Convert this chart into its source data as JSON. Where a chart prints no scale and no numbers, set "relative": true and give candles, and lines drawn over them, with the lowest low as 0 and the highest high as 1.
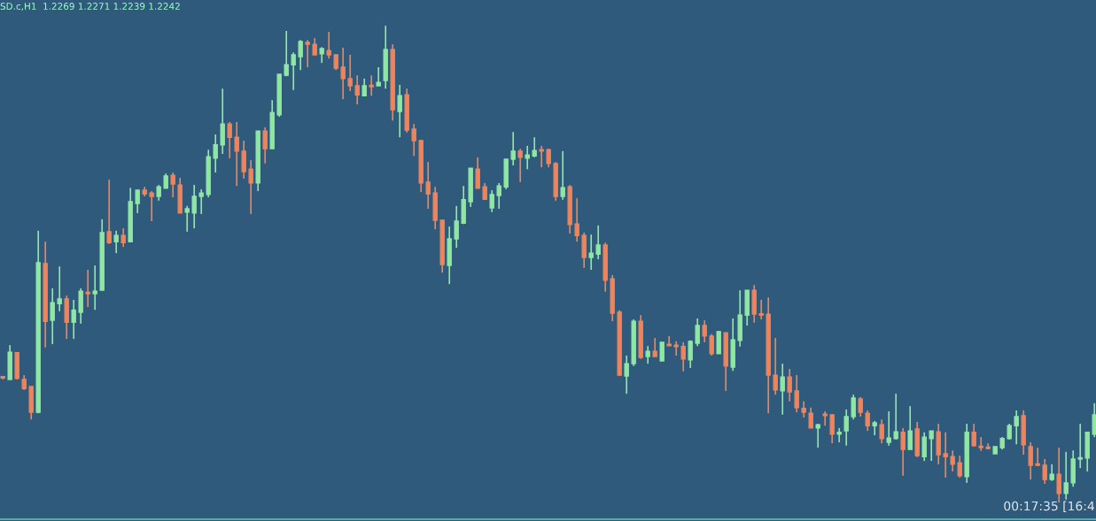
{
  "chart_data": {
    "type": "candlestick",
    "relative": true,
    "title": "SD.c,H1  1.2269 1.2271 1.2239 1.2242",
    "annotations": [
      "00:17:35 [16:4"
    ],
    "categories": [
      null,
      null,
      null,
      null,
      null,
      null,
      null,
      null,
      null,
      null,
      null,
      null,
      null,
      null,
      null,
      null,
      null,
      null,
      null,
      null,
      null,
      null,
      null,
      null,
      null,
      null,
      null,
      null,
      null,
      null,
      null,
      null,
      null,
      null,
      null,
      null,
      null,
      null,
      null,
      null,
      null,
      null,
      null,
      null,
      null,
      null,
      null,
      null,
      null,
      null,
      null,
      null,
      null,
      null,
      null,
      null,
      null,
      null,
      null,
      null,
      null,
      null,
      null,
      null,
      null,
      null,
      null,
      null,
      null,
      null,
      null,
      null,
      null,
      null,
      null,
      null,
      null,
      null,
      null,
      null,
      null,
      null,
      null,
      null,
      null,
      null,
      null,
      null,
      null,
      null,
      null,
      null,
      null,
      null,
      null,
      null,
      null,
      null,
      null,
      null,
      null,
      null,
      null,
      null,
      null,
      null,
      null,
      null,
      null,
      null,
      null,
      null,
      null,
      null,
      null,
      null,
      null,
      null,
      null,
      null,
      null,
      null,
      null,
      null,
      null,
      null,
      null,
      null,
      null,
      null,
      null,
      null,
      null,
      null,
      null,
      null,
      null,
      null,
      null,
      null,
      null,
      null,
      null,
      null,
      null,
      null,
      null,
      null,
      null,
      null,
      null,
      null,
      null,
      null,
      null
    ],
    "ohlc": [
      [
        0.262,
        0.265,
        0.258,
        0.261
      ],
      [
        0.258,
        0.33,
        0.258,
        0.315
      ],
      [
        0.314,
        0.314,
        0.258,
        0.26
      ],
      [
        0.258,
        0.267,
        0.236,
        0.239
      ],
      [
        0.243,
        0.243,
        0.174,
        0.189
      ],
      [
        0.189,
        0.57,
        0.187,
        0.503
      ],
      [
        0.501,
        0.547,
        0.325,
        0.38
      ],
      [
        0.382,
        0.449,
        0.332,
        0.419
      ],
      [
        0.417,
        0.495,
        0.401,
        0.427
      ],
      [
        0.427,
        0.434,
        0.343,
        0.378
      ],
      [
        0.378,
        0.425,
        0.343,
        0.403
      ],
      [
        0.399,
        0.449,
        0.375,
        0.443
      ],
      [
        0.44,
        0.488,
        0.41,
        0.438
      ],
      [
        0.438,
        0.497,
        0.404,
        0.443
      ],
      [
        0.445,
        0.594,
        0.445,
        0.566
      ],
      [
        0.568,
        0.677,
        0.542,
        0.545
      ],
      [
        0.547,
        0.57,
        0.523,
        0.56
      ],
      [
        0.56,
        0.575,
        0.536,
        0.545
      ],
      [
        0.547,
        0.66,
        0.547,
        0.631
      ],
      [
        0.627,
        0.655,
        0.607,
        0.655
      ],
      [
        0.655,
        0.662,
        0.642,
        0.647
      ],
      [
        0.649,
        0.653,
        0.59,
        0.642
      ],
      [
        0.642,
        0.666,
        0.633,
        0.662
      ],
      [
        0.659,
        0.69,
        0.659,
        0.685
      ],
      [
        0.686,
        0.692,
        0.64,
        0.668
      ],
      [
        0.666,
        0.681,
        0.607,
        0.607
      ],
      [
        0.609,
        0.622,
        0.568,
        0.616
      ],
      [
        0.607,
        0.666,
        0.575,
        0.642
      ],
      [
        0.642,
        0.657,
        0.605,
        0.649
      ],
      [
        0.646,
        0.74,
        0.64,
        0.725
      ],
      [
        0.722,
        0.772,
        0.692,
        0.75
      ],
      [
        0.75,
        0.868,
        0.731,
        0.794
      ],
      [
        0.794,
        0.798,
        0.722,
        0.766
      ],
      [
        0.766,
        0.798,
        0.664,
        0.737
      ],
      [
        0.737,
        0.759,
        0.679,
        0.694
      ],
      [
        0.699,
        0.718,
        0.605,
        0.67
      ],
      [
        0.67,
        0.779,
        0.653,
        0.779
      ],
      [
        0.779,
        0.787,
        0.711,
        0.742
      ],
      [
        0.742,
        0.844,
        0.742,
        0.818
      ],
      [
        0.813,
        0.898,
        0.809,
        0.898
      ],
      [
        0.896,
        0.989,
        0.894,
        0.918
      ],
      [
        0.918,
        0.944,
        0.865,
        0.939
      ],
      [
        0.935,
        0.97,
        0.907,
        0.967
      ],
      [
        0.965,
        0.97,
        0.913,
        0.961
      ],
      [
        0.961,
        0.974,
        0.939,
        0.939
      ],
      [
        0.941,
        0.955,
        0.922,
        0.952
      ],
      [
        0.948,
        0.987,
        0.931,
        0.939
      ],
      [
        0.939,
        0.939,
        0.907,
        0.911
      ],
      [
        0.913,
        0.954,
        0.846,
        0.889
      ],
      [
        0.889,
        0.939,
        0.863,
        0.874
      ],
      [
        0.874,
        0.896,
        0.835,
        0.855
      ],
      [
        0.853,
        0.889,
        0.852,
        0.874
      ],
      [
        0.874,
        0.896,
        0.853,
        0.872
      ],
      [
        0.874,
        0.913,
        0.874,
        0.881
      ],
      [
        0.885,
        1.0,
        0.868,
        0.95
      ],
      [
        0.95,
        0.961,
        0.801,
        0.824
      ],
      [
        0.82,
        0.876,
        0.766,
        0.853
      ],
      [
        0.855,
        0.868,
        0.776,
        0.781
      ],
      [
        0.783,
        0.794,
        0.727,
        0.759
      ],
      [
        0.759,
        0.761,
        0.651,
        0.67
      ],
      [
        0.672,
        0.714,
        0.616,
        0.647
      ],
      [
        0.649,
        0.662,
        0.573,
        0.592
      ],
      [
        0.592,
        0.592,
        0.482,
        0.499
      ],
      [
        0.497,
        0.579,
        0.458,
        0.553
      ],
      [
        0.553,
        0.622,
        0.534,
        0.59
      ],
      [
        0.586,
        0.664,
        0.584,
        0.635
      ],
      [
        0.631,
        0.701,
        0.62,
        0.701
      ],
      [
        0.699,
        0.724,
        0.659,
        0.659
      ],
      [
        0.662,
        0.67,
        0.636,
        0.636
      ],
      [
        0.618,
        0.655,
        0.609,
        0.646
      ],
      [
        0.644,
        0.67,
        0.616,
        0.664
      ],
      [
        0.662,
        0.72,
        0.657,
        0.72
      ],
      [
        0.72,
        0.777,
        0.707,
        0.737
      ],
      [
        0.737,
        0.742,
        0.672,
        0.724
      ],
      [
        0.722,
        0.748,
        0.699,
        0.729
      ],
      [
        0.727,
        0.766,
        0.724,
        0.738
      ],
      [
        0.738,
        0.748,
        0.703,
        0.737
      ],
      [
        0.74,
        0.742,
        0.703,
        0.711
      ],
      [
        0.711,
        0.714,
        0.633,
        0.642
      ],
      [
        0.642,
        0.737,
        0.635,
        0.66
      ],
      [
        0.662,
        0.666,
        0.564,
        0.583
      ],
      [
        0.584,
        0.638,
        0.547,
        0.56
      ],
      [
        0.56,
        0.566,
        0.492,
        0.514
      ],
      [
        0.514,
        0.562,
        0.488,
        0.523
      ],
      [
        0.521,
        0.581,
        0.51,
        0.54
      ],
      [
        0.54,
        0.545,
        0.442,
        0.466
      ],
      [
        0.469,
        0.477,
        0.38,
        0.397
      ],
      [
        0.399,
        0.403,
        0.265,
        0.267
      ],
      [
        0.265,
        0.308,
        0.228,
        0.291
      ],
      [
        0.291,
        0.384,
        0.286,
        0.38
      ],
      [
        0.38,
        0.393,
        0.301,
        0.304
      ],
      [
        0.306,
        0.328,
        0.291,
        0.317
      ],
      [
        0.317,
        0.345,
        0.306,
        0.306
      ],
      [
        0.297,
        0.336,
        0.297,
        0.336
      ],
      [
        0.331,
        0.349,
        0.328,
        0.329
      ],
      [
        0.328,
        0.338,
        0.308,
        0.327
      ],
      [
        0.327,
        0.336,
        0.275,
        0.301
      ],
      [
        0.299,
        0.34,
        0.282,
        0.338
      ],
      [
        0.334,
        0.386,
        0.328,
        0.371
      ],
      [
        0.371,
        0.382,
        0.336,
        0.349
      ],
      [
        0.349,
        0.353,
        0.308,
        0.312
      ],
      [
        0.312,
        0.36,
        0.312,
        0.358
      ],
      [
        0.356,
        0.356,
        0.234,
        0.286
      ],
      [
        0.284,
        0.386,
        0.276,
        0.341
      ],
      [
        0.34,
        0.445,
        0.327,
        0.393
      ],
      [
        0.393,
        0.445,
        0.371,
        0.445
      ],
      [
        0.445,
        0.456,
        0.377,
        0.395
      ],
      [
        0.395,
        0.425,
        0.384,
        0.393
      ],
      [
        0.395,
        0.43,
        0.187,
        0.267
      ],
      [
        0.267,
        0.345,
        0.226,
        0.236
      ],
      [
        0.234,
        0.291,
        0.184,
        0.263
      ],
      [
        0.263,
        0.28,
        0.212,
        0.232
      ],
      [
        0.234,
        0.267,
        0.189,
        0.199
      ],
      [
        0.197,
        0.212,
        0.178,
        0.189
      ],
      [
        0.187,
        0.199,
        0.156,
        0.156
      ],
      [
        0.156,
        0.165,
        0.115,
        0.163
      ],
      [
        0.184,
        0.191,
        0.161,
        0.182
      ],
      [
        0.184,
        0.184,
        0.124,
        0.143
      ],
      [
        0.143,
        0.156,
        0.126,
        0.147
      ],
      [
        0.15,
        0.195,
        0.119,
        0.18
      ],
      [
        0.18,
        0.226,
        0.174,
        0.219
      ],
      [
        0.217,
        0.221,
        0.18,
        0.189
      ],
      [
        0.187,
        0.193,
        0.15,
        0.161
      ],
      [
        0.161,
        0.171,
        0.141,
        0.167
      ],
      [
        0.163,
        0.174,
        0.124,
        0.134
      ],
      [
        0.126,
        0.191,
        0.119,
        0.135
      ],
      [
        0.134,
        0.228,
        0.132,
        0.148
      ],
      [
        0.147,
        0.156,
        0.056,
        0.111
      ],
      [
        0.111,
        0.202,
        0.111,
        0.15
      ],
      [
        0.154,
        0.169,
        0.095,
        0.098
      ],
      [
        0.096,
        0.147,
        0.087,
        0.137
      ],
      [
        0.134,
        0.15,
        0.087,
        0.15
      ],
      [
        0.148,
        0.165,
        0.08,
        0.1
      ],
      [
        0.102,
        0.147,
        0.052,
        0.096
      ],
      [
        0.096,
        0.109,
        0.065,
        0.08
      ],
      [
        0.083,
        0.098,
        0.052,
        0.056
      ],
      [
        0.054,
        0.165,
        0.041,
        0.147
      ],
      [
        0.147,
        0.165,
        0.117,
        0.119
      ],
      [
        0.117,
        0.137,
        0.108,
        0.115
      ],
      [
        0.115,
        0.124,
        0.111,
        0.113
      ],
      [
        0.102,
        0.117,
        0.102,
        0.117
      ],
      [
        0.115,
        0.137,
        0.111,
        0.134
      ],
      [
        0.134,
        0.165,
        0.132,
        0.161
      ],
      [
        0.161,
        0.193,
        0.122,
        0.18
      ],
      [
        0.182,
        0.193,
        0.1,
        0.121
      ],
      [
        0.117,
        0.126,
        0.048,
        0.078
      ],
      [
        0.08,
        0.115,
        0.076,
        0.078
      ],
      [
        0.078,
        0.091,
        0.039,
        0.048
      ],
      [
        0.048,
        0.08,
        0.045,
        0.059
      ],
      [
        0.059,
        0.115,
        0.0,
        0.019
      ],
      [
        0.019,
        0.106,
        0.006,
        0.041
      ],
      [
        0.041,
        0.109,
        0.033,
        0.091
      ],
      [
        0.091,
        0.165,
        0.072,
        0.093
      ],
      [
        0.093,
        0.147,
        0.065,
        0.147
      ],
      [
        0.143,
        0.208,
        0.137,
        0.184
      ]
    ]
  }
}
